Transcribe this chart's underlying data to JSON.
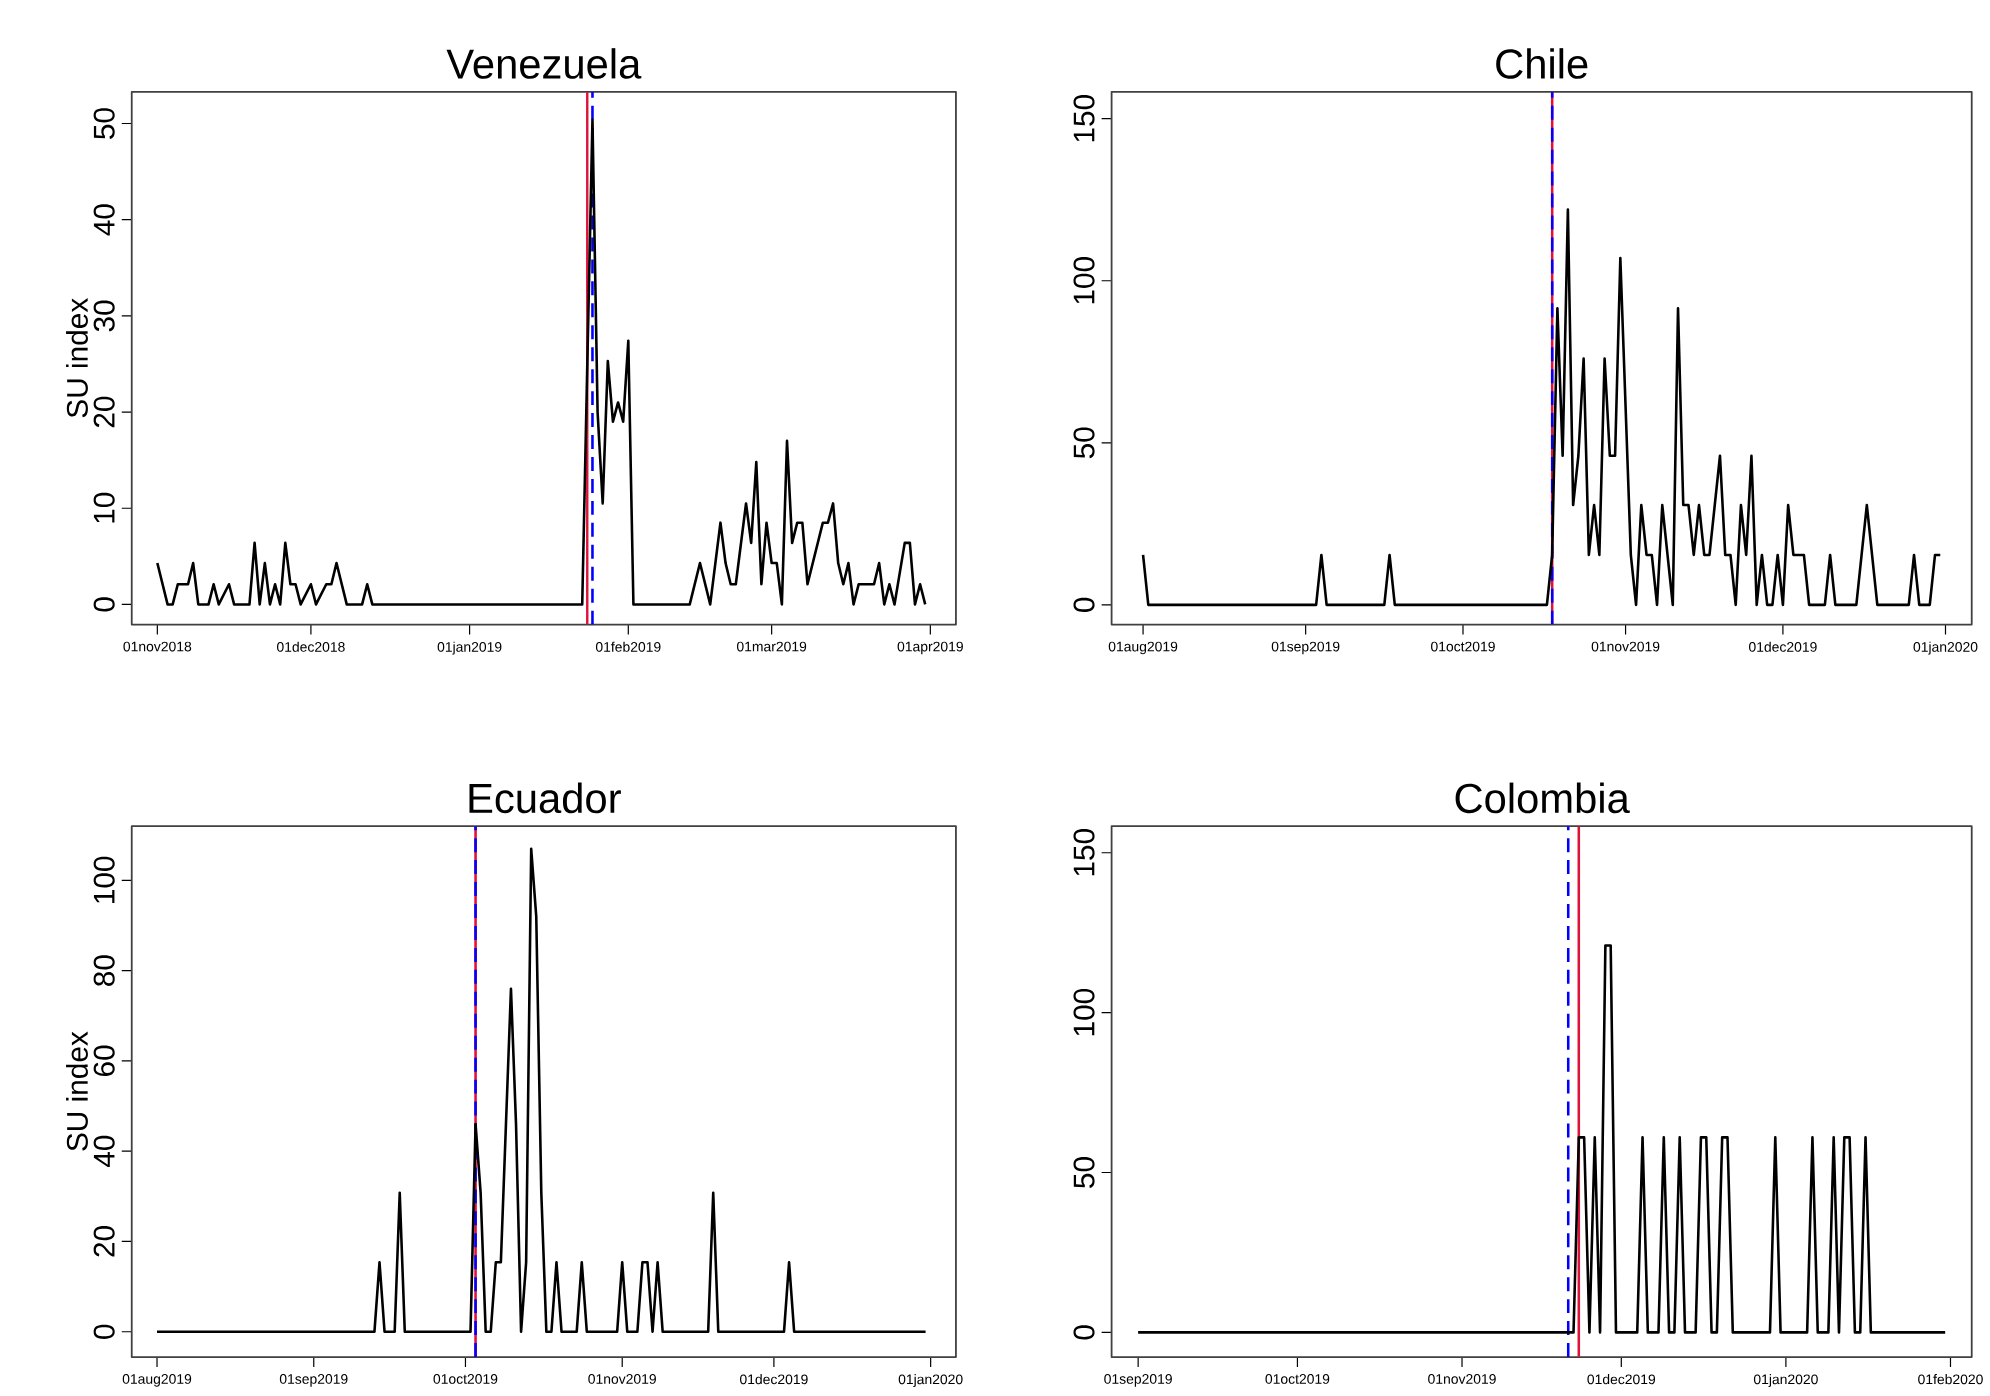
{
  "chart_data": [
    {
      "type": "line",
      "title": "Venezuela",
      "ylabel": "SU index",
      "xlim": [
        "2018-10-27",
        "2019-04-06"
      ],
      "ylim": [
        -2.1,
        53.3
      ],
      "xticks": [
        {
          "value": "2018-11-01",
          "label": "01nov2018"
        },
        {
          "value": "2018-12-01",
          "label": "01dec2018"
        },
        {
          "value": "2019-01-01",
          "label": "01jan2019"
        },
        {
          "value": "2019-02-01",
          "label": "01feb2019"
        },
        {
          "value": "2019-03-01",
          "label": "01mar2019"
        },
        {
          "value": "2019-04-01",
          "label": "01apr2019"
        }
      ],
      "yticks": [
        0,
        10,
        20,
        30,
        40,
        50
      ],
      "ref_lines": [
        {
          "axis": "x",
          "value": "2019-01-24",
          "color": "#e0103a",
          "line_style": "solid"
        },
        {
          "axis": "x",
          "value": "2019-01-25",
          "color": "#0000ff",
          "line_style": "dashed"
        }
      ],
      "series": [
        {
          "color": "#000000",
          "x": [
            "2018-11-01",
            "2018-11-03",
            "2018-11-04",
            "2018-11-05",
            "2018-11-07",
            "2018-11-08",
            "2018-11-09",
            "2018-11-11",
            "2018-11-12",
            "2018-11-13",
            "2018-11-15",
            "2018-11-16",
            "2018-11-19",
            "2018-11-20",
            "2018-11-21",
            "2018-11-22",
            "2018-11-23",
            "2018-11-24",
            "2018-11-25",
            "2018-11-26",
            "2018-11-27",
            "2018-11-28",
            "2018-11-29",
            "2018-12-01",
            "2018-12-02",
            "2018-12-04",
            "2018-12-05",
            "2018-12-06",
            "2018-12-08",
            "2018-12-11",
            "2018-12-12",
            "2018-12-13",
            "2019-01-23",
            "2019-01-25",
            "2019-01-26",
            "2019-01-27",
            "2019-01-28",
            "2019-01-29",
            "2019-01-30",
            "2019-01-31",
            "2019-02-01",
            "2019-02-02",
            "2019-02-13",
            "2019-02-15",
            "2019-02-17",
            "2019-02-19",
            "2019-02-20",
            "2019-02-21",
            "2019-02-22",
            "2019-02-24",
            "2019-02-25",
            "2019-02-26",
            "2019-02-27",
            "2019-02-28",
            "2019-03-01",
            "2019-03-02",
            "2019-03-03",
            "2019-03-04",
            "2019-03-05",
            "2019-03-06",
            "2019-03-07",
            "2019-03-08",
            "2019-03-11",
            "2019-03-12",
            "2019-03-13",
            "2019-03-14",
            "2019-03-15",
            "2019-03-16",
            "2019-03-17",
            "2019-03-18",
            "2019-03-21",
            "2019-03-22",
            "2019-03-23",
            "2019-03-24",
            "2019-03-25",
            "2019-03-27",
            "2019-03-28",
            "2019-03-29",
            "2019-03-30",
            "2019-03-31"
          ],
          "values": [
            4.3,
            0,
            0,
            2.1,
            2.1,
            4.3,
            0,
            0,
            2.1,
            0,
            2.1,
            0,
            0,
            6.4,
            0,
            4.3,
            0,
            2.1,
            0,
            6.4,
            2.1,
            2.1,
            0,
            2.1,
            0,
            2.1,
            2.1,
            4.3,
            0,
            0,
            2.1,
            0,
            0,
            50.4,
            20,
            10.5,
            25.3,
            19,
            21,
            19,
            27.4,
            0,
            0,
            4.3,
            0,
            8.5,
            4.3,
            2.1,
            2.1,
            10.5,
            6.4,
            14.8,
            2.1,
            8.5,
            4.3,
            4.3,
            0,
            17,
            6.4,
            8.5,
            8.5,
            2.1,
            8.5,
            8.5,
            10.5,
            4.3,
            2.1,
            4.3,
            0,
            2.1,
            2.1,
            4.3,
            0,
            2.1,
            0,
            6.4,
            6.4,
            0,
            2.1,
            0
          ]
        }
      ]
    },
    {
      "type": "line",
      "title": "Chile",
      "xlim": [
        "2019-07-26",
        "2020-01-06"
      ],
      "ylim": [
        -6.1,
        158.3
      ],
      "xticks": [
        {
          "value": "2019-08-01",
          "label": "01aug2019"
        },
        {
          "value": "2019-09-01",
          "label": "01sep2019"
        },
        {
          "value": "2019-10-01",
          "label": "01oct2019"
        },
        {
          "value": "2019-11-01",
          "label": "01nov2019"
        },
        {
          "value": "2019-12-01",
          "label": "01dec2019"
        },
        {
          "value": "2020-01-01",
          "label": "01jan2020"
        }
      ],
      "yticks": [
        0,
        50,
        100,
        150
      ],
      "ref_lines": [
        {
          "axis": "x",
          "value": "2019-10-18",
          "color": "#e0103a",
          "line_style": "solid"
        },
        {
          "axis": "x",
          "value": "2019-10-18",
          "color": "#0000ff",
          "line_style": "dashed"
        }
      ],
      "series": [
        {
          "color": "#000000",
          "x": [
            "2019-08-01",
            "2019-08-02",
            "2019-09-03",
            "2019-09-04",
            "2019-09-05",
            "2019-09-16",
            "2019-09-17",
            "2019-09-18",
            "2019-10-17",
            "2019-10-18",
            "2019-10-19",
            "2019-10-20",
            "2019-10-21",
            "2019-10-22",
            "2019-10-23",
            "2019-10-24",
            "2019-10-25",
            "2019-10-26",
            "2019-10-27",
            "2019-10-28",
            "2019-10-29",
            "2019-10-30",
            "2019-10-31",
            "2019-11-02",
            "2019-11-03",
            "2019-11-04",
            "2019-11-05",
            "2019-11-06",
            "2019-11-07",
            "2019-11-08",
            "2019-11-10",
            "2019-11-11",
            "2019-11-12",
            "2019-11-13",
            "2019-11-14",
            "2019-11-15",
            "2019-11-16",
            "2019-11-17",
            "2019-11-19",
            "2019-11-20",
            "2019-11-21",
            "2019-11-22",
            "2019-11-23",
            "2019-11-24",
            "2019-11-25",
            "2019-11-26",
            "2019-11-27",
            "2019-11-28",
            "2019-11-29",
            "2019-11-30",
            "2019-12-01",
            "2019-12-02",
            "2019-12-03",
            "2019-12-05",
            "2019-12-06",
            "2019-12-09",
            "2019-12-10",
            "2019-12-11",
            "2019-12-15",
            "2019-12-17",
            "2019-12-19",
            "2019-12-25",
            "2019-12-26",
            "2019-12-27",
            "2019-12-29",
            "2019-12-30",
            "2019-12-31"
          ],
          "values": [
            15.4,
            0,
            0,
            15.4,
            0,
            0,
            15.4,
            0,
            0,
            15.4,
            91.5,
            46,
            122,
            30.8,
            46,
            76,
            15.4,
            30.8,
            15.4,
            76,
            46,
            46,
            107,
            15.4,
            0,
            30.8,
            15.4,
            15.4,
            0,
            30.8,
            0,
            91.5,
            30.8,
            30.8,
            15.4,
            30.8,
            15.4,
            15.4,
            46,
            15.4,
            15.4,
            0,
            30.8,
            15.4,
            46,
            0,
            15.4,
            0,
            0,
            15.4,
            0,
            30.8,
            15.4,
            15.4,
            0,
            0,
            15.4,
            0,
            0,
            30.8,
            0,
            0,
            15.4,
            0,
            0,
            15.4,
            15.4
          ]
        }
      ]
    },
    {
      "type": "line",
      "title": "Ecuador",
      "ylabel": "SU index",
      "xlim": [
        "2019-07-27",
        "2020-01-06"
      ],
      "ylim": [
        -5.6,
        112
      ],
      "xticks": [
        {
          "value": "2019-08-01",
          "label": "01aug2019"
        },
        {
          "value": "2019-09-01",
          "label": "01sep2019"
        },
        {
          "value": "2019-10-01",
          "label": "01oct2019"
        },
        {
          "value": "2019-11-01",
          "label": "01nov2019"
        },
        {
          "value": "2019-12-01",
          "label": "01dec2019"
        },
        {
          "value": "2020-01-01",
          "label": "01jan2020"
        }
      ],
      "yticks": [
        0,
        20,
        40,
        60,
        80,
        100
      ],
      "ref_lines": [
        {
          "axis": "x",
          "value": "2019-10-03",
          "color": "#e0103a",
          "line_style": "solid"
        },
        {
          "axis": "x",
          "value": "2019-10-03",
          "color": "#0000ff",
          "line_style": "dashed"
        }
      ],
      "series": [
        {
          "color": "#000000",
          "x": [
            "2019-08-01",
            "2019-09-13",
            "2019-09-14",
            "2019-09-15",
            "2019-09-17",
            "2019-09-18",
            "2019-09-19",
            "2019-10-02",
            "2019-10-03",
            "2019-10-04",
            "2019-10-05",
            "2019-10-06",
            "2019-10-07",
            "2019-10-08",
            "2019-10-10",
            "2019-10-11",
            "2019-10-12",
            "2019-10-13",
            "2019-10-14",
            "2019-10-15",
            "2019-10-16",
            "2019-10-17",
            "2019-10-18",
            "2019-10-19",
            "2019-10-20",
            "2019-10-23",
            "2019-10-24",
            "2019-10-25",
            "2019-10-31",
            "2019-11-01",
            "2019-11-02",
            "2019-11-04",
            "2019-11-05",
            "2019-11-06",
            "2019-11-07",
            "2019-11-08",
            "2019-11-09",
            "2019-11-18",
            "2019-11-19",
            "2019-11-20",
            "2019-12-03",
            "2019-12-04",
            "2019-12-05",
            "2019-12-31"
          ],
          "values": [
            0,
            0,
            15.4,
            0,
            0,
            30.8,
            0,
            0,
            46,
            30.8,
            0,
            0,
            15.4,
            15.4,
            76,
            46,
            0,
            15.4,
            107,
            92,
            30.8,
            0,
            0,
            15.4,
            0,
            0,
            15.4,
            0,
            0,
            15.4,
            0,
            0,
            15.4,
            15.4,
            0,
            15.4,
            0,
            0,
            30.8,
            0,
            0,
            15.4,
            0,
            0
          ]
        }
      ]
    },
    {
      "type": "line",
      "title": "Colombia",
      "xlim": [
        "2019-08-27",
        "2020-02-05"
      ],
      "ylim": [
        -7.7,
        158.3
      ],
      "xticks": [
        {
          "value": "2019-09-01",
          "label": "01sep2019"
        },
        {
          "value": "2019-10-01",
          "label": "01oct2019"
        },
        {
          "value": "2019-11-01",
          "label": "01nov2019"
        },
        {
          "value": "2019-12-01",
          "label": "01dec2019"
        },
        {
          "value": "2020-01-01",
          "label": "01jan2020"
        },
        {
          "value": "2020-02-01",
          "label": "01feb2020"
        }
      ],
      "yticks": [
        0,
        50,
        100,
        150
      ],
      "ref_lines": [
        {
          "axis": "x",
          "value": "2019-11-23",
          "color": "#e0103a",
          "line_style": "solid"
        },
        {
          "axis": "x",
          "value": "2019-11-21",
          "color": "#0000ff",
          "line_style": "dashed"
        }
      ],
      "series": [
        {
          "color": "#000000",
          "x": [
            "2019-09-01",
            "2019-11-22",
            "2019-11-23",
            "2019-11-24",
            "2019-11-25",
            "2019-11-26",
            "2019-11-27",
            "2019-11-28",
            "2019-11-29",
            "2019-11-30",
            "2019-12-04",
            "2019-12-05",
            "2019-12-06",
            "2019-12-08",
            "2019-12-09",
            "2019-12-10",
            "2019-12-11",
            "2019-12-12",
            "2019-12-13",
            "2019-12-15",
            "2019-12-16",
            "2019-12-17",
            "2019-12-18",
            "2019-12-19",
            "2019-12-20",
            "2019-12-21",
            "2019-12-22",
            "2019-12-29",
            "2019-12-30",
            "2019-12-31",
            "2020-01-05",
            "2020-01-06",
            "2020-01-07",
            "2020-01-09",
            "2020-01-10",
            "2020-01-11",
            "2020-01-12",
            "2020-01-13",
            "2020-01-14",
            "2020-01-15",
            "2020-01-16",
            "2020-01-17",
            "2020-01-31"
          ],
          "values": [
            0,
            0,
            61,
            61,
            0,
            61,
            0,
            121,
            121,
            0,
            0,
            61,
            0,
            0,
            61,
            0,
            0,
            61,
            0,
            0,
            61,
            61,
            0,
            0,
            61,
            61,
            0,
            0,
            61,
            0,
            0,
            61,
            0,
            0,
            61,
            0,
            61,
            61,
            0,
            0,
            61,
            0,
            0
          ]
        }
      ]
    }
  ]
}
